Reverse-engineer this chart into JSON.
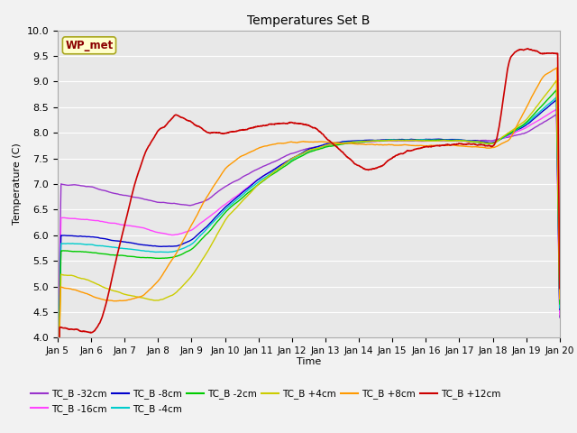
{
  "title": "Temperatures Set B",
  "xlabel": "Time",
  "ylabel": "Temperature (C)",
  "ylim": [
    4.0,
    10.0
  ],
  "yticks": [
    4.0,
    4.5,
    5.0,
    5.5,
    6.0,
    6.5,
    7.0,
    7.5,
    8.0,
    8.5,
    9.0,
    9.5,
    10.0
  ],
  "bg_color": "#e8e8e8",
  "fig_color": "#f2f2f2",
  "annotation_text": "WP_met",
  "annotation_color": "#8b0000",
  "annotation_bg": "#ffffcc",
  "annotation_border": "#aaa820",
  "series": [
    {
      "label": "TC_B -32cm",
      "color": "#9933cc",
      "lw": 1.0
    },
    {
      "label": "TC_B -16cm",
      "color": "#ff44ff",
      "lw": 1.0
    },
    {
      "label": "TC_B -8cm",
      "color": "#0000cc",
      "lw": 1.0
    },
    {
      "label": "TC_B -4cm",
      "color": "#00cccc",
      "lw": 1.0
    },
    {
      "label": "TC_B -2cm",
      "color": "#00cc00",
      "lw": 1.0
    },
    {
      "label": "TC_B +4cm",
      "color": "#cccc00",
      "lw": 1.0
    },
    {
      "label": "TC_B +8cm",
      "color": "#ff9900",
      "lw": 1.0
    },
    {
      "label": "TC_B +12cm",
      "color": "#cc0000",
      "lw": 1.2
    }
  ],
  "xtick_labels": [
    "Jan 5",
    "Jan 6",
    "Jan 7",
    "Jan 8",
    "Jan 9",
    "Jan 10",
    "Jan 11",
    "Jan 12",
    "Jan 13",
    "Jan 14",
    "Jan 15",
    "Jan 16",
    "Jan 17",
    "Jan 18",
    "Jan 19",
    "Jan 20"
  ],
  "n_points": 3000
}
